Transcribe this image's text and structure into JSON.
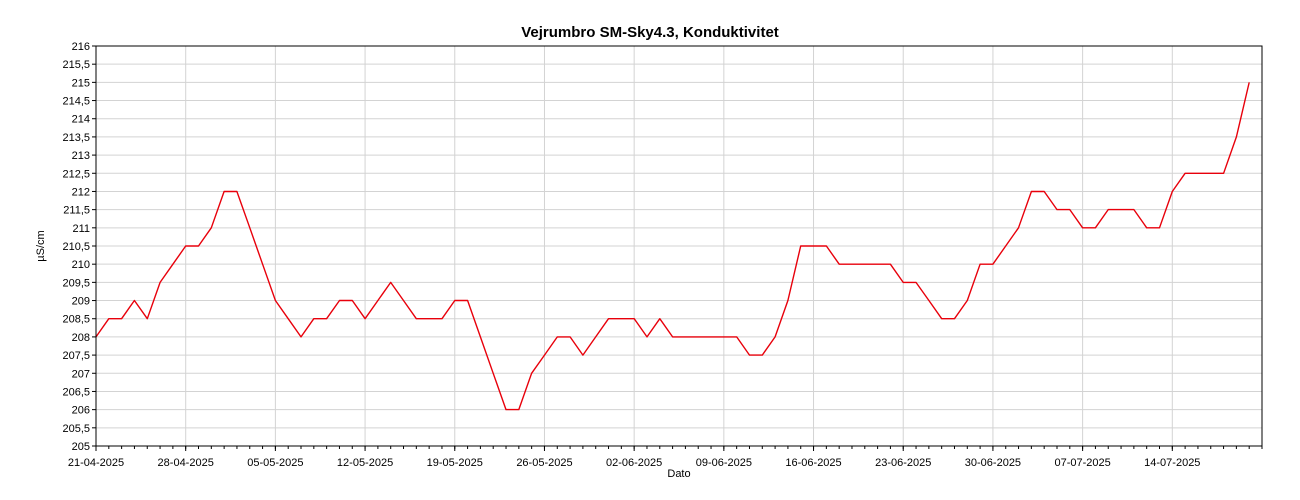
{
  "chart_data": {
    "type": "line",
    "title": "Vejrumbro SM-Sky4.3, Konduktivitet",
    "xlabel": "Dato",
    "ylabel": "µS/cm",
    "x_range": [
      "2025-04-21",
      "2025-07-21"
    ],
    "ylim": [
      205,
      216
    ],
    "y_ticks": [
      "205",
      "205,5",
      "206",
      "206,5",
      "207",
      "207,5",
      "208",
      "208,5",
      "209",
      "209,5",
      "210",
      "210,5",
      "211",
      "211,5",
      "212",
      "212,5",
      "213",
      "213,5",
      "214",
      "214,5",
      "215",
      "215,5",
      "216"
    ],
    "x_ticks": [
      "21-04-2025",
      "28-04-2025",
      "05-05-2025",
      "12-05-2025",
      "19-05-2025",
      "26-05-2025",
      "02-06-2025",
      "09-06-2025",
      "16-06-2025",
      "23-06-2025",
      "30-06-2025",
      "07-07-2025",
      "14-07-2025"
    ],
    "grid": true,
    "line_color": "#e8000b",
    "series": [
      {
        "x": [
          "2025-04-21",
          "2025-04-22",
          "2025-04-23",
          "2025-04-24",
          "2025-04-25",
          "2025-04-26",
          "2025-04-27",
          "2025-04-28",
          "2025-04-29",
          "2025-04-30",
          "2025-05-01",
          "2025-05-02",
          "2025-05-03",
          "2025-05-04",
          "2025-05-05",
          "2025-05-06",
          "2025-05-07",
          "2025-05-08",
          "2025-05-09",
          "2025-05-10",
          "2025-05-11",
          "2025-05-12",
          "2025-05-13",
          "2025-05-14",
          "2025-05-15",
          "2025-05-16",
          "2025-05-17",
          "2025-05-18",
          "2025-05-19",
          "2025-05-20",
          "2025-05-21",
          "2025-05-22",
          "2025-05-23",
          "2025-05-24",
          "2025-05-25",
          "2025-05-26",
          "2025-05-27",
          "2025-05-28",
          "2025-05-29",
          "2025-05-30",
          "2025-05-31",
          "2025-06-01",
          "2025-06-02",
          "2025-06-03",
          "2025-06-04",
          "2025-06-05",
          "2025-06-06",
          "2025-06-07",
          "2025-06-08",
          "2025-06-09",
          "2025-06-10",
          "2025-06-11",
          "2025-06-12",
          "2025-06-13",
          "2025-06-14",
          "2025-06-15",
          "2025-06-16",
          "2025-06-17",
          "2025-06-18",
          "2025-06-19",
          "2025-06-20",
          "2025-06-21",
          "2025-06-22",
          "2025-06-23",
          "2025-06-24",
          "2025-06-25",
          "2025-06-26",
          "2025-06-27",
          "2025-06-28",
          "2025-06-29",
          "2025-06-30",
          "2025-07-01",
          "2025-07-02",
          "2025-07-03",
          "2025-07-04",
          "2025-07-05",
          "2025-07-06",
          "2025-07-07",
          "2025-07-08",
          "2025-07-09",
          "2025-07-10",
          "2025-07-11",
          "2025-07-12",
          "2025-07-13",
          "2025-07-14",
          "2025-07-15",
          "2025-07-16",
          "2025-07-17",
          "2025-07-18",
          "2025-07-19",
          "2025-07-20"
        ],
        "y": [
          208,
          208.5,
          208.5,
          209,
          208.5,
          209.5,
          210,
          210.5,
          210.5,
          211,
          212,
          212,
          211,
          210,
          209,
          208.5,
          208,
          208.5,
          208.5,
          209,
          209,
          208.5,
          209,
          209.5,
          209,
          208.5,
          208.5,
          208.5,
          209,
          209,
          208,
          207,
          206,
          206,
          207,
          207.5,
          208,
          208,
          207.5,
          208,
          208.5,
          208.5,
          208.5,
          208,
          208.5,
          208,
          208,
          208,
          208,
          208,
          208,
          207.5,
          207.5,
          208,
          209,
          210.5,
          210.5,
          210.5,
          210,
          210,
          210,
          210,
          210,
          209.5,
          209.5,
          209,
          208.5,
          208.5,
          209,
          210,
          210,
          210.5,
          211,
          212,
          212,
          211.5,
          211.5,
          211,
          211,
          211.5,
          211.5,
          211.5,
          211,
          211,
          212,
          212.5,
          212.5,
          212.5,
          212.5,
          213.5,
          215
        ]
      }
    ]
  }
}
